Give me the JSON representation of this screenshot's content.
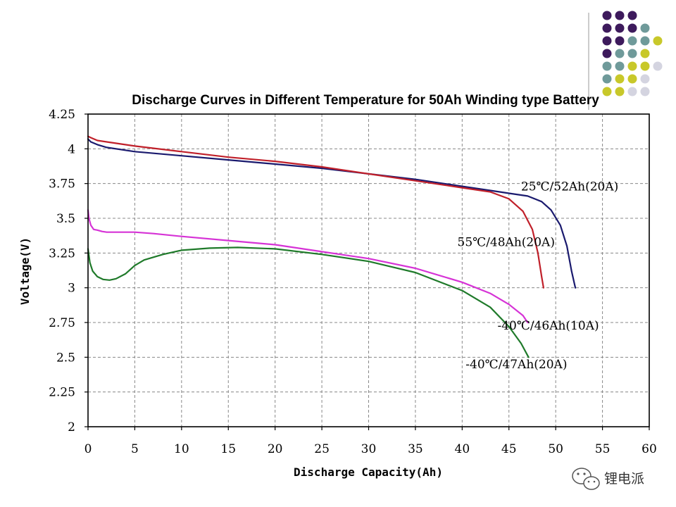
{
  "chart_data": {
    "type": "line",
    "title": "Discharge Curves in Different Temperature for 50Ah Winding type Battery",
    "xlabel": "Discharge Capacity(Ah)",
    "ylabel": "Voltage(V)",
    "xlim": [
      0,
      60
    ],
    "ylim": [
      2,
      4.25
    ],
    "xticks": [
      0,
      5,
      10,
      15,
      20,
      25,
      30,
      35,
      40,
      45,
      50,
      55,
      60
    ],
    "yticks": [
      2,
      2.25,
      2.5,
      2.75,
      3,
      3.25,
      3.5,
      3.75,
      4,
      4.25
    ],
    "xtick_labels": [
      "0",
      "5",
      "10",
      "15",
      "20",
      "25",
      "30",
      "35",
      "40",
      "45",
      "50",
      "55",
      "60"
    ],
    "ytick_labels": [
      "2",
      "2.25",
      "2.5",
      "2.75",
      "3",
      "3.25",
      "3.5",
      "3.75",
      "4",
      "4.25"
    ],
    "grid": true,
    "series": [
      {
        "name": "25℃/52Ah(20A)",
        "color": "#1a1a6e",
        "x": [
          0,
          0.3,
          1,
          2,
          5,
          10,
          15,
          20,
          25,
          30,
          35,
          40,
          43,
          45,
          47,
          48.5,
          49.5,
          50.5,
          51.2,
          51.7,
          52.0,
          52.1
        ],
        "y": [
          4.07,
          4.05,
          4.03,
          4.01,
          3.98,
          3.95,
          3.92,
          3.89,
          3.86,
          3.82,
          3.78,
          3.73,
          3.7,
          3.68,
          3.66,
          3.62,
          3.56,
          3.45,
          3.3,
          3.12,
          3.03,
          3.0
        ]
      },
      {
        "name": "55℃/48Ah(20A)",
        "color": "#c0202a",
        "x": [
          0,
          0.3,
          1,
          2,
          5,
          10,
          15,
          20,
          25,
          30,
          35,
          40,
          43,
          45,
          46.5,
          47.5,
          48.1,
          48.5,
          48.7
        ],
        "y": [
          4.09,
          4.08,
          4.06,
          4.05,
          4.02,
          3.98,
          3.94,
          3.91,
          3.87,
          3.82,
          3.77,
          3.72,
          3.69,
          3.64,
          3.55,
          3.42,
          3.25,
          3.08,
          3.0
        ]
      },
      {
        "name": "-40℃/46Ah(10A)",
        "color": "#d633d6",
        "x": [
          0,
          0.1,
          0.3,
          0.6,
          1,
          1.5,
          2,
          3,
          5,
          7,
          10,
          15,
          20,
          25,
          30,
          35,
          40,
          43,
          45,
          46.5,
          47.0
        ],
        "y": [
          3.56,
          3.5,
          3.45,
          3.42,
          3.415,
          3.405,
          3.4,
          3.4,
          3.4,
          3.39,
          3.37,
          3.34,
          3.31,
          3.26,
          3.21,
          3.14,
          3.04,
          2.96,
          2.88,
          2.8,
          2.75
        ]
      },
      {
        "name": "-40℃/47Ah(20A)",
        "color": "#1f7a2a",
        "x": [
          0,
          0.2,
          0.5,
          1,
          1.6,
          2.3,
          3,
          4,
          5,
          6,
          8,
          10,
          13,
          16,
          20,
          25,
          30,
          35,
          40,
          43,
          45,
          46.3,
          47.1
        ],
        "y": [
          3.28,
          3.18,
          3.12,
          3.08,
          3.06,
          3.055,
          3.065,
          3.1,
          3.16,
          3.2,
          3.24,
          3.27,
          3.285,
          3.29,
          3.28,
          3.24,
          3.19,
          3.11,
          2.98,
          2.86,
          2.72,
          2.6,
          2.5
        ]
      }
    ]
  },
  "annotations": [
    {
      "text": "25℃/52Ah(20A)",
      "series": 0,
      "x": 51.5,
      "y": 3.7
    },
    {
      "text": "55℃/48Ah(20A)",
      "series": 1,
      "x": 44.7,
      "y": 3.3
    },
    {
      "text": "-40℃/46Ah(10A)",
      "series": 2,
      "x": 49.2,
      "y": 2.7
    },
    {
      "text": "-40℃/47Ah(20A)",
      "series": 3,
      "x": 45.8,
      "y": 2.42
    }
  ],
  "watermark": {
    "text": "锂电派",
    "icon": "wechat-icon"
  },
  "decoration": {
    "dot_colors": [
      "#3d1a5c",
      "#6f9a9a",
      "#c8c82a",
      "#d4d4e0"
    ]
  }
}
